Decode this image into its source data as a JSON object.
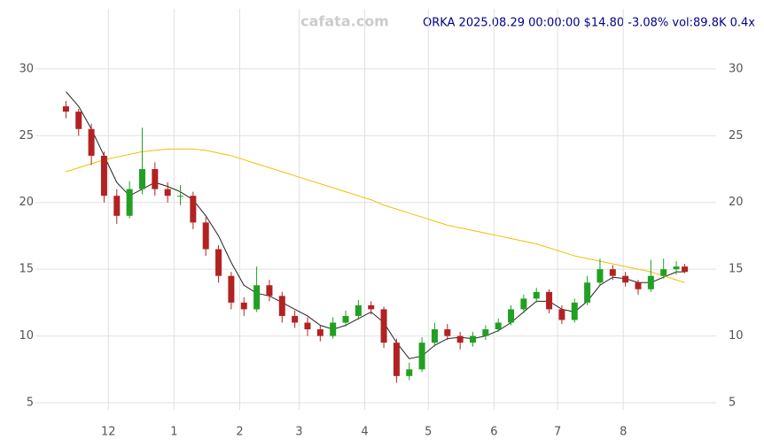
{
  "chart_data": {
    "type": "candlestick",
    "title": "ORKA 2025.08.29 00:00:00 $14.80 -3.08% vol:89.8K 0.4x",
    "watermark": "cafata.com",
    "x": [
      10,
      16,
      22,
      28,
      34,
      40,
      46,
      52,
      58,
      64,
      70,
      76,
      82,
      88,
      94,
      100,
      106,
      112,
      118,
      124,
      130,
      136,
      142,
      148,
      154,
      160,
      166,
      172,
      178,
      184,
      190,
      196,
      202,
      208,
      214,
      220,
      226,
      232,
      238,
      244,
      250,
      256,
      262,
      268,
      274,
      280,
      286,
      292,
      298,
      302
    ],
    "open": [
      27.2,
      26.8,
      25.5,
      23.5,
      20.5,
      19.0,
      21.0,
      22.5,
      21.0,
      20.5,
      20.5,
      18.5,
      16.5,
      14.5,
      12.5,
      12.0,
      13.8,
      13.0,
      11.5,
      11.0,
      10.5,
      10.0,
      11.0,
      11.5,
      12.3,
      12.0,
      9.5,
      7.0,
      7.5,
      9.5,
      10.5,
      10.0,
      9.5,
      10.0,
      10.5,
      11.0,
      12.0,
      12.8,
      13.3,
      12.0,
      11.2,
      12.5,
      14.0,
      15.0,
      14.5,
      14.0,
      13.5,
      14.5,
      15.0,
      15.2
    ],
    "high": [
      27.6,
      27.0,
      25.9,
      23.8,
      21.0,
      21.6,
      25.6,
      23.0,
      21.5,
      21.3,
      20.8,
      18.9,
      16.8,
      14.8,
      12.9,
      15.2,
      14.2,
      13.3,
      11.9,
      11.4,
      10.8,
      11.4,
      11.9,
      12.7,
      12.6,
      12.2,
      9.8,
      8.0,
      9.9,
      11.0,
      10.9,
      10.3,
      10.3,
      10.8,
      11.3,
      12.3,
      13.1,
      13.6,
      13.5,
      12.3,
      12.8,
      14.5,
      15.8,
      15.3,
      14.8,
      14.2,
      15.7,
      15.8,
      15.6,
      15.4
    ],
    "low": [
      26.3,
      25.0,
      22.8,
      20.0,
      18.4,
      18.8,
      20.6,
      20.5,
      20.0,
      19.8,
      18.0,
      16.0,
      14.0,
      12.0,
      11.5,
      11.8,
      12.6,
      11.0,
      10.6,
      10.0,
      9.6,
      9.8,
      10.7,
      11.2,
      11.6,
      9.1,
      6.5,
      6.7,
      7.3,
      9.2,
      9.7,
      9.0,
      9.2,
      9.7,
      10.3,
      10.8,
      11.7,
      12.5,
      11.7,
      10.9,
      11.0,
      12.3,
      13.8,
      14.2,
      13.7,
      13.1,
      13.3,
      14.3,
      14.6,
      14.7
    ],
    "close": [
      26.8,
      25.5,
      23.5,
      20.5,
      19.0,
      21.0,
      22.5,
      21.0,
      20.5,
      20.5,
      18.5,
      16.5,
      14.5,
      12.5,
      12.0,
      13.8,
      13.0,
      11.5,
      11.0,
      10.5,
      10.0,
      11.0,
      11.5,
      12.3,
      12.0,
      9.5,
      7.0,
      7.5,
      9.5,
      10.5,
      10.0,
      9.5,
      10.0,
      10.5,
      11.0,
      12.0,
      12.8,
      13.3,
      12.0,
      11.2,
      12.5,
      14.0,
      15.0,
      14.5,
      14.0,
      13.5,
      14.5,
      15.0,
      15.2,
      14.8
    ],
    "up_color": "#22a022",
    "down_color": "#b22222",
    "series": [
      {
        "color": "#222222",
        "values": [
          28.3,
          27.2,
          25.5,
          23.5,
          21.5,
          20.5,
          21,
          21.5,
          21.2,
          20.8,
          20.2,
          19,
          17.5,
          15.5,
          13.8,
          13.2,
          13,
          12.5,
          12,
          11.5,
          10.8,
          10.5,
          10.8,
          11.3,
          11.8,
          11,
          9.5,
          8.3,
          8.5,
          9.3,
          9.8,
          9.9,
          9.8,
          10,
          10.4,
          11,
          11.8,
          12.6,
          12.6,
          12,
          11.8,
          12.6,
          13.8,
          14.4,
          14.3,
          14,
          14,
          14.4,
          14.8,
          14.8
        ]
      },
      {
        "color": "#f0c000",
        "values": [
          22.3,
          22.6,
          22.9,
          23.2,
          23.4,
          23.6,
          23.8,
          23.9,
          24,
          24,
          24,
          23.9,
          23.7,
          23.5,
          23.2,
          22.9,
          22.6,
          22.3,
          22,
          21.7,
          21.4,
          21.1,
          20.8,
          20.5,
          20.2,
          19.8,
          19.5,
          19.2,
          18.9,
          18.6,
          18.3,
          18.1,
          17.9,
          17.7,
          17.5,
          17.3,
          17.1,
          16.9,
          16.6,
          16.3,
          16,
          15.8,
          15.6,
          15.4,
          15.2,
          15,
          14.8,
          14.5,
          14.2,
          14
        ]
      }
    ],
    "xlim": [
      9,
      303
    ],
    "xticks": [
      {
        "value": 30,
        "label": "12"
      },
      {
        "value": 61,
        "label": "1"
      },
      {
        "value": 92,
        "label": "2"
      },
      {
        "value": 120,
        "label": "3"
      },
      {
        "value": 151,
        "label": "4"
      },
      {
        "value": 181,
        "label": "5"
      },
      {
        "value": 212,
        "label": "6"
      },
      {
        "value": 242,
        "label": "7"
      },
      {
        "value": 273,
        "label": "8"
      }
    ],
    "ylim": [
      5,
      34.5
    ],
    "yticks": [
      5,
      10,
      15,
      20,
      25,
      30
    ],
    "grid": true
  }
}
